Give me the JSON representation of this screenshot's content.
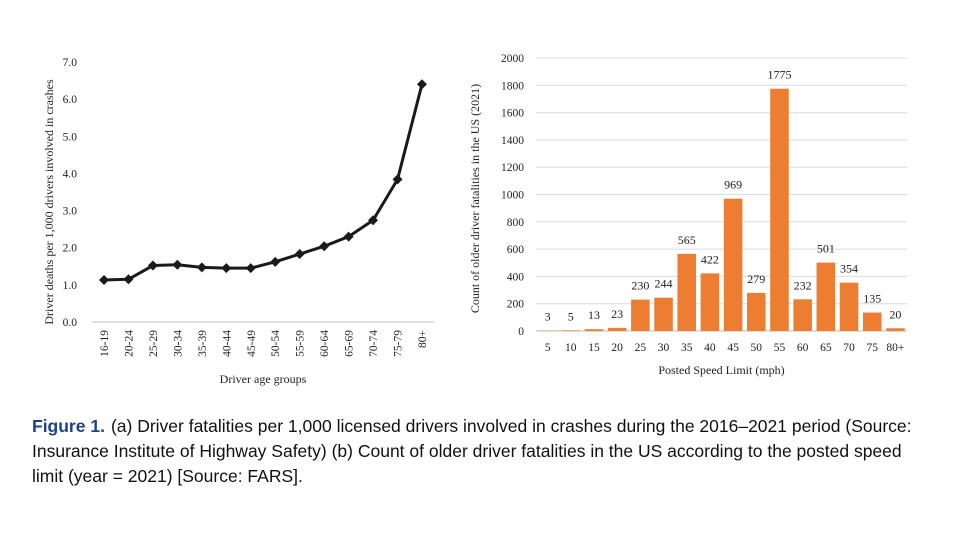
{
  "caption": {
    "label": "Figure 1.",
    "text": "(a) Driver fatalities per 1,000 licensed drivers involved in crashes during the 2016–2021 period (Source: Insurance Institute of Highway Safety) (b) Count of older driver fatalities in the US according to the posted speed limit (year = 2021) [Source: FARS]."
  },
  "chart_data": [
    {
      "type": "line",
      "title": "",
      "xlabel": "Driver age groups",
      "ylabel": "Driver deaths per 1,000 drivers involved in crashes",
      "categories": [
        "16-19",
        "20-24",
        "25-29",
        "30-34",
        "35-39",
        "40-44",
        "45-49",
        "50-54",
        "55-59",
        "60-64",
        "65-69",
        "70-74",
        "75-79",
        "80+"
      ],
      "values": [
        1.13,
        1.15,
        1.52,
        1.54,
        1.47,
        1.45,
        1.45,
        1.62,
        1.83,
        2.04,
        2.3,
        2.74,
        3.84,
        6.4
      ],
      "ylim": [
        0,
        7
      ],
      "yticks": [
        "0.0",
        "1.0",
        "2.0",
        "3.0",
        "4.0",
        "5.0",
        "6.0",
        "7.0"
      ],
      "grid": false,
      "color": "#1a1a1a"
    },
    {
      "type": "bar",
      "title": "",
      "xlabel": "Posted Speed Limit (mph)",
      "ylabel": "Count of older driver fatalities in the US (2021)",
      "categories": [
        "5",
        "10",
        "15",
        "20",
        "25",
        "30",
        "35",
        "40",
        "45",
        "50",
        "55",
        "60",
        "65",
        "70",
        "75",
        "80+"
      ],
      "values": [
        3,
        5,
        13,
        23,
        230,
        244,
        565,
        422,
        969,
        279,
        1775,
        232,
        501,
        354,
        135,
        20
      ],
      "ylim": [
        0,
        2000
      ],
      "yticks": [
        "0",
        "200",
        "400",
        "600",
        "800",
        "1000",
        "1200",
        "1400",
        "1600",
        "1800",
        "2000"
      ],
      "grid": true,
      "color": "#ed7d31"
    }
  ]
}
